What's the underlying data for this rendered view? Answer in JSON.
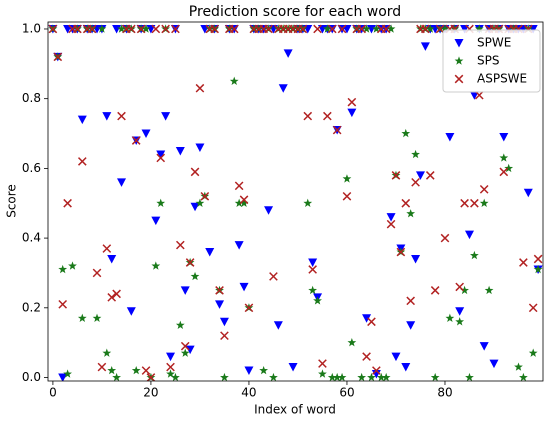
{
  "chart_data": {
    "type": "scatter",
    "title": "Prediction score for each word",
    "xlabel": "Index of word",
    "ylabel": "Score",
    "x": [
      0,
      1,
      2,
      3,
      4,
      5,
      6,
      7,
      8,
      9,
      10,
      11,
      12,
      13,
      14,
      15,
      16,
      17,
      18,
      19,
      20,
      21,
      22,
      23,
      24,
      25,
      26,
      27,
      28,
      29,
      30,
      31,
      32,
      33,
      34,
      35,
      36,
      37,
      38,
      39,
      40,
      41,
      42,
      43,
      44,
      45,
      46,
      47,
      48,
      49,
      50,
      51,
      52,
      53,
      54,
      55,
      56,
      57,
      58,
      59,
      60,
      61,
      62,
      63,
      64,
      65,
      66,
      67,
      68,
      69,
      70,
      71,
      72,
      73,
      74,
      75,
      76,
      77,
      78,
      79,
      80,
      81,
      82,
      83,
      84,
      85,
      86,
      87,
      88,
      89,
      90,
      91,
      92,
      93,
      94,
      95,
      96,
      97,
      98,
      99
    ],
    "xlim": [
      -1,
      100
    ],
    "xticks": [
      0,
      20,
      40,
      60,
      80
    ],
    "ylim": [
      -0.01,
      1.02
    ],
    "yticks": [
      {
        "value": 0,
        "label": "0.0"
      },
      0.2,
      0.4,
      0.6,
      0.8,
      {
        "value": 1,
        "label": "1.0"
      }
    ],
    "legend": "upper right",
    "series": [
      {
        "name": "SPWE",
        "color": "#0000ff",
        "marker": "triangle-down",
        "values": [
          1,
          0.92,
          0,
          1,
          1,
          1,
          0.74,
          1,
          1,
          1,
          1,
          0.75,
          0.34,
          1,
          0.56,
          1,
          0.19,
          0.68,
          1,
          0.7,
          1,
          0.45,
          0.64,
          0.75,
          0.06,
          1,
          0.65,
          0.25,
          0.08,
          0.49,
          0.66,
          1,
          0.36,
          1,
          0.21,
          0.16,
          1,
          1,
          0.38,
          0.26,
          0.02,
          1,
          1,
          1,
          0.48,
          1,
          0.15,
          0.83,
          0.93,
          0.03,
          1,
          1,
          1,
          0.33,
          0.23,
          1,
          1,
          1,
          0.71,
          1,
          1,
          0.76,
          1,
          1,
          0.17,
          1,
          0.01,
          1,
          1,
          0.46,
          0.06,
          0.37,
          0.03,
          0.15,
          0.34,
          0.58,
          0.95,
          1,
          1,
          1,
          1,
          0.69,
          1,
          0.19,
          1,
          0.41,
          0.81,
          1,
          0.09,
          1,
          0.04,
          1,
          0.69,
          1,
          1,
          1,
          1,
          0.53,
          1,
          0.31
        ]
      },
      {
        "name": "SPS",
        "color": "#1a7a1a",
        "marker": "star",
        "values": [
          1,
          0.92,
          0.31,
          0.01,
          0.32,
          1,
          0.17,
          1,
          1,
          0.17,
          1,
          0.07,
          0.02,
          0,
          1,
          1,
          1,
          0.02,
          1,
          1,
          0,
          0.32,
          0.5,
          1,
          0.01,
          0,
          0.15,
          0.07,
          0.33,
          0.29,
          0.5,
          0.52,
          1,
          1,
          0.25,
          0,
          1,
          0.85,
          0.5,
          0.5,
          0.2,
          1,
          1,
          0.02,
          1,
          0,
          1,
          1,
          1,
          1,
          1,
          1,
          0.5,
          0.25,
          0.22,
          0.01,
          1,
          0,
          0,
          0,
          0.57,
          0.1,
          1,
          0,
          1,
          0,
          1,
          0,
          0,
          1,
          0.58,
          0.36,
          0.7,
          0.47,
          0.64,
          1,
          1,
          1,
          0,
          1,
          1,
          0.17,
          1,
          0.16,
          0.25,
          0,
          0.35,
          1,
          0.5,
          0.25,
          1,
          1,
          0.63,
          0.6,
          1,
          0.03,
          0,
          1,
          0.07,
          0.31
        ]
      },
      {
        "name": "ASPSWE",
        "color": "#b22222",
        "marker": "x",
        "values": [
          1,
          0.92,
          0.21,
          0.5,
          1,
          1,
          0.62,
          1,
          1,
          0.3,
          0.03,
          0.37,
          0.23,
          0.24,
          0.75,
          1,
          1,
          0.68,
          1,
          0.02,
          0,
          1,
          0.63,
          1,
          0.03,
          1,
          0.38,
          0.09,
          0.33,
          0.59,
          0.83,
          0.52,
          1,
          1,
          0.25,
          0.12,
          1,
          1,
          0.55,
          0.51,
          0.2,
          1,
          1,
          1,
          1,
          0.29,
          1,
          1,
          1,
          1,
          1,
          1,
          0.75,
          0.31,
          1,
          0.04,
          0.75,
          1,
          0.71,
          1,
          0.52,
          0.79,
          1,
          1,
          0.06,
          0.16,
          0.02,
          1,
          1,
          0.44,
          0.58,
          0.36,
          0.5,
          0.22,
          0.56,
          1,
          1,
          0.58,
          0.25,
          1,
          0.4,
          1,
          1,
          0.26,
          0.5,
          1,
          0.5,
          0.81,
          0.54,
          1,
          1,
          1,
          0.59,
          1,
          1,
          1,
          0.33,
          1,
          0.2,
          0.34
        ]
      }
    ]
  }
}
